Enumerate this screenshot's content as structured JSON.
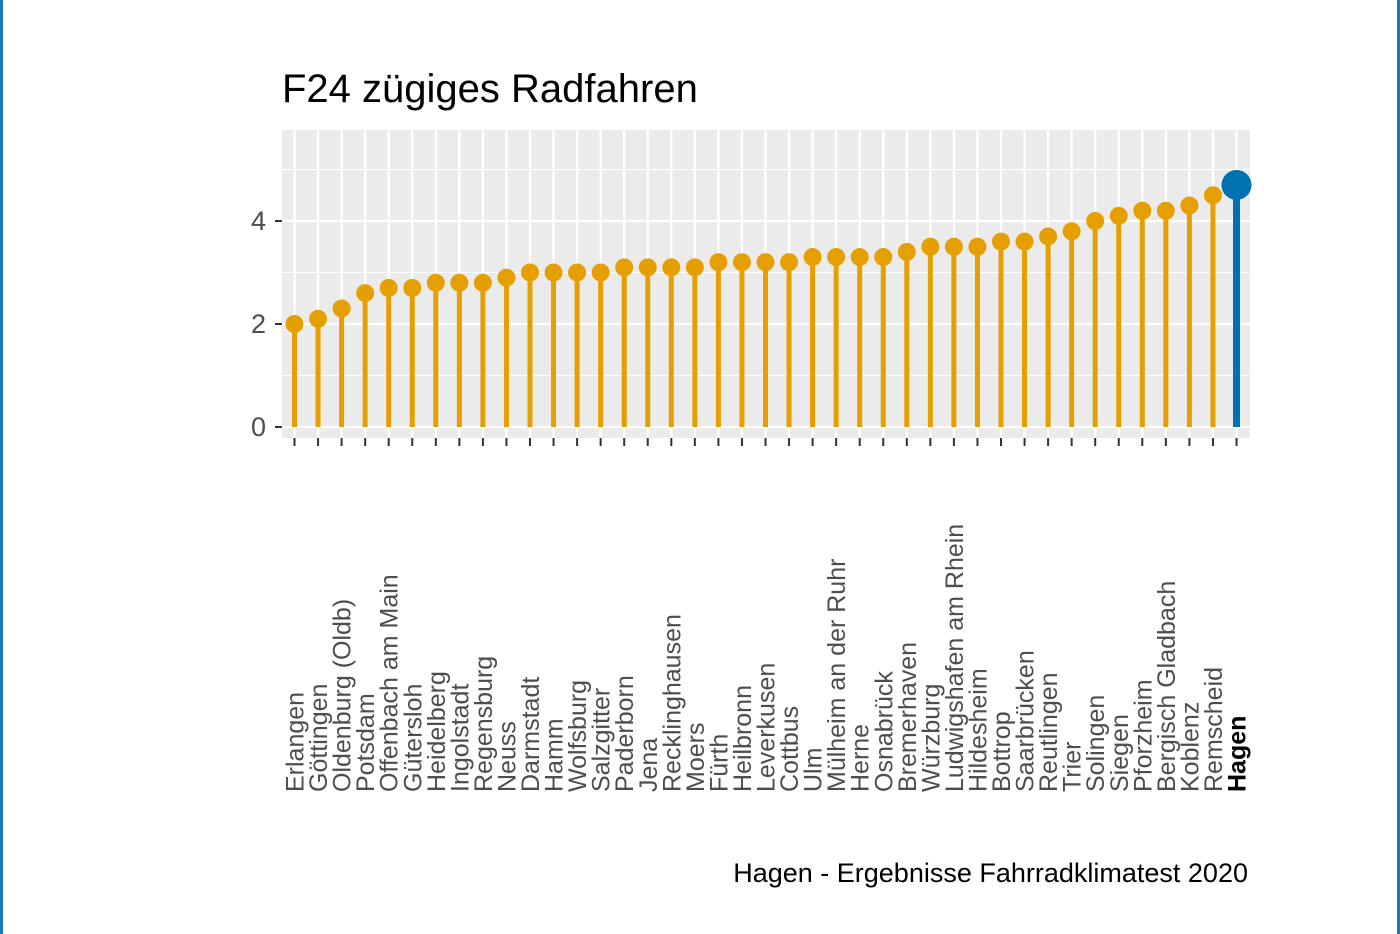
{
  "chart_data": {
    "type": "lollipop",
    "title": "F24 zügiges Radfahren",
    "caption": "Hagen - Ergebnisse Fahrradklimatest 2020",
    "xlabel": "",
    "ylabel": "",
    "ylim": [
      0,
      5.65
    ],
    "yticks": [
      0,
      2,
      4
    ],
    "grid": true,
    "highlight": "Hagen",
    "colors": {
      "default": "#E69F00",
      "highlight": "#0072B2",
      "panel": "#EBEBEB",
      "grid": "#FFFFFF"
    },
    "categories": [
      "Erlangen",
      "Göttingen",
      "Oldenburg (Oldb)",
      "Potsdam",
      "Offenbach am Main",
      "Gütersloh",
      "Heidelberg",
      "Ingolstadt",
      "Regensburg",
      "Neuss",
      "Darmstadt",
      "Hamm",
      "Wolfsburg",
      "Salzgitter",
      "Paderborn",
      "Jena",
      "Recklinghausen",
      "Moers",
      "Fürth",
      "Heilbronn",
      "Leverkusen",
      "Cottbus",
      "Ulm",
      "Mülheim an der Ruhr",
      "Herne",
      "Osnabrück",
      "Bremerhaven",
      "Würzburg",
      "Ludwigshafen am Rhein",
      "Hildesheim",
      "Bottrop",
      "Saarbrücken",
      "Reutlingen",
      "Trier",
      "Solingen",
      "Siegen",
      "Pforzheim",
      "Bergisch Gladbach",
      "Koblenz",
      "Remscheid",
      "Hagen"
    ],
    "values": [
      2.0,
      2.1,
      2.3,
      2.6,
      2.7,
      2.7,
      2.8,
      2.8,
      2.8,
      2.9,
      3.0,
      3.0,
      3.0,
      3.0,
      3.1,
      3.1,
      3.1,
      3.1,
      3.2,
      3.2,
      3.2,
      3.2,
      3.3,
      3.3,
      3.3,
      3.3,
      3.4,
      3.5,
      3.5,
      3.5,
      3.6,
      3.6,
      3.7,
      3.8,
      4.0,
      4.1,
      4.2,
      4.2,
      4.3,
      4.5,
      4.7
    ]
  }
}
